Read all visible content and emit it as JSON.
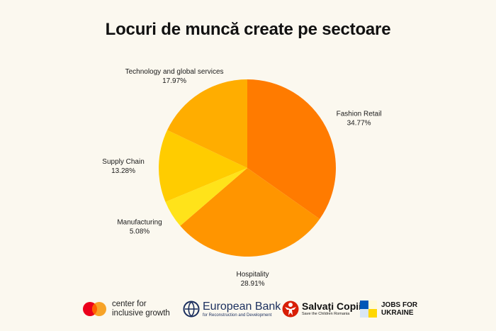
{
  "chart_data": {
    "type": "pie",
    "title": "Locuri de muncă create pe sectoare",
    "slices": [
      {
        "label": "Fashion Retail",
        "value_label": "34.77%",
        "value": 34.77,
        "color": "#ff7b00"
      },
      {
        "label": "Hospitality",
        "value_label": "28.91%",
        "value": 28.91,
        "color": "#ff9500"
      },
      {
        "label": "Manufacturing",
        "value_label": "5.08%",
        "value": 5.08,
        "color": "#ffe31a"
      },
      {
        "label": "Supply Chain",
        "value_label": "13.28%",
        "value": 13.28,
        "color": "#ffcc00"
      },
      {
        "label": "Technology and global services",
        "value_label": "17.97%",
        "value": 17.97,
        "color": "#ffad00"
      }
    ],
    "start": "top",
    "direction": "clockwise"
  },
  "footer": {
    "mastercard": {
      "line1": "center for",
      "line2": "inclusive growth",
      "colors": [
        "#eb001b",
        "#f79e1b"
      ],
      "icon": "mastercard-circles-icon"
    },
    "ebrd": {
      "name": "European Bank",
      "subtitle": "for Reconstruction and Development",
      "color": "#1b2f5e",
      "icon": "ebrd-globe-icon"
    },
    "salvati": {
      "name": "Salvați Copiii",
      "subtitle": "Save the Children Romania",
      "color": "#d81e05",
      "icon": "save-the-children-icon"
    },
    "jobs": {
      "line1": "JOBS FOR",
      "line2": "UKRAINE",
      "colors": [
        "#0057b7",
        "#ffd700"
      ],
      "icon": "ukraine-flag-square-icon"
    }
  }
}
